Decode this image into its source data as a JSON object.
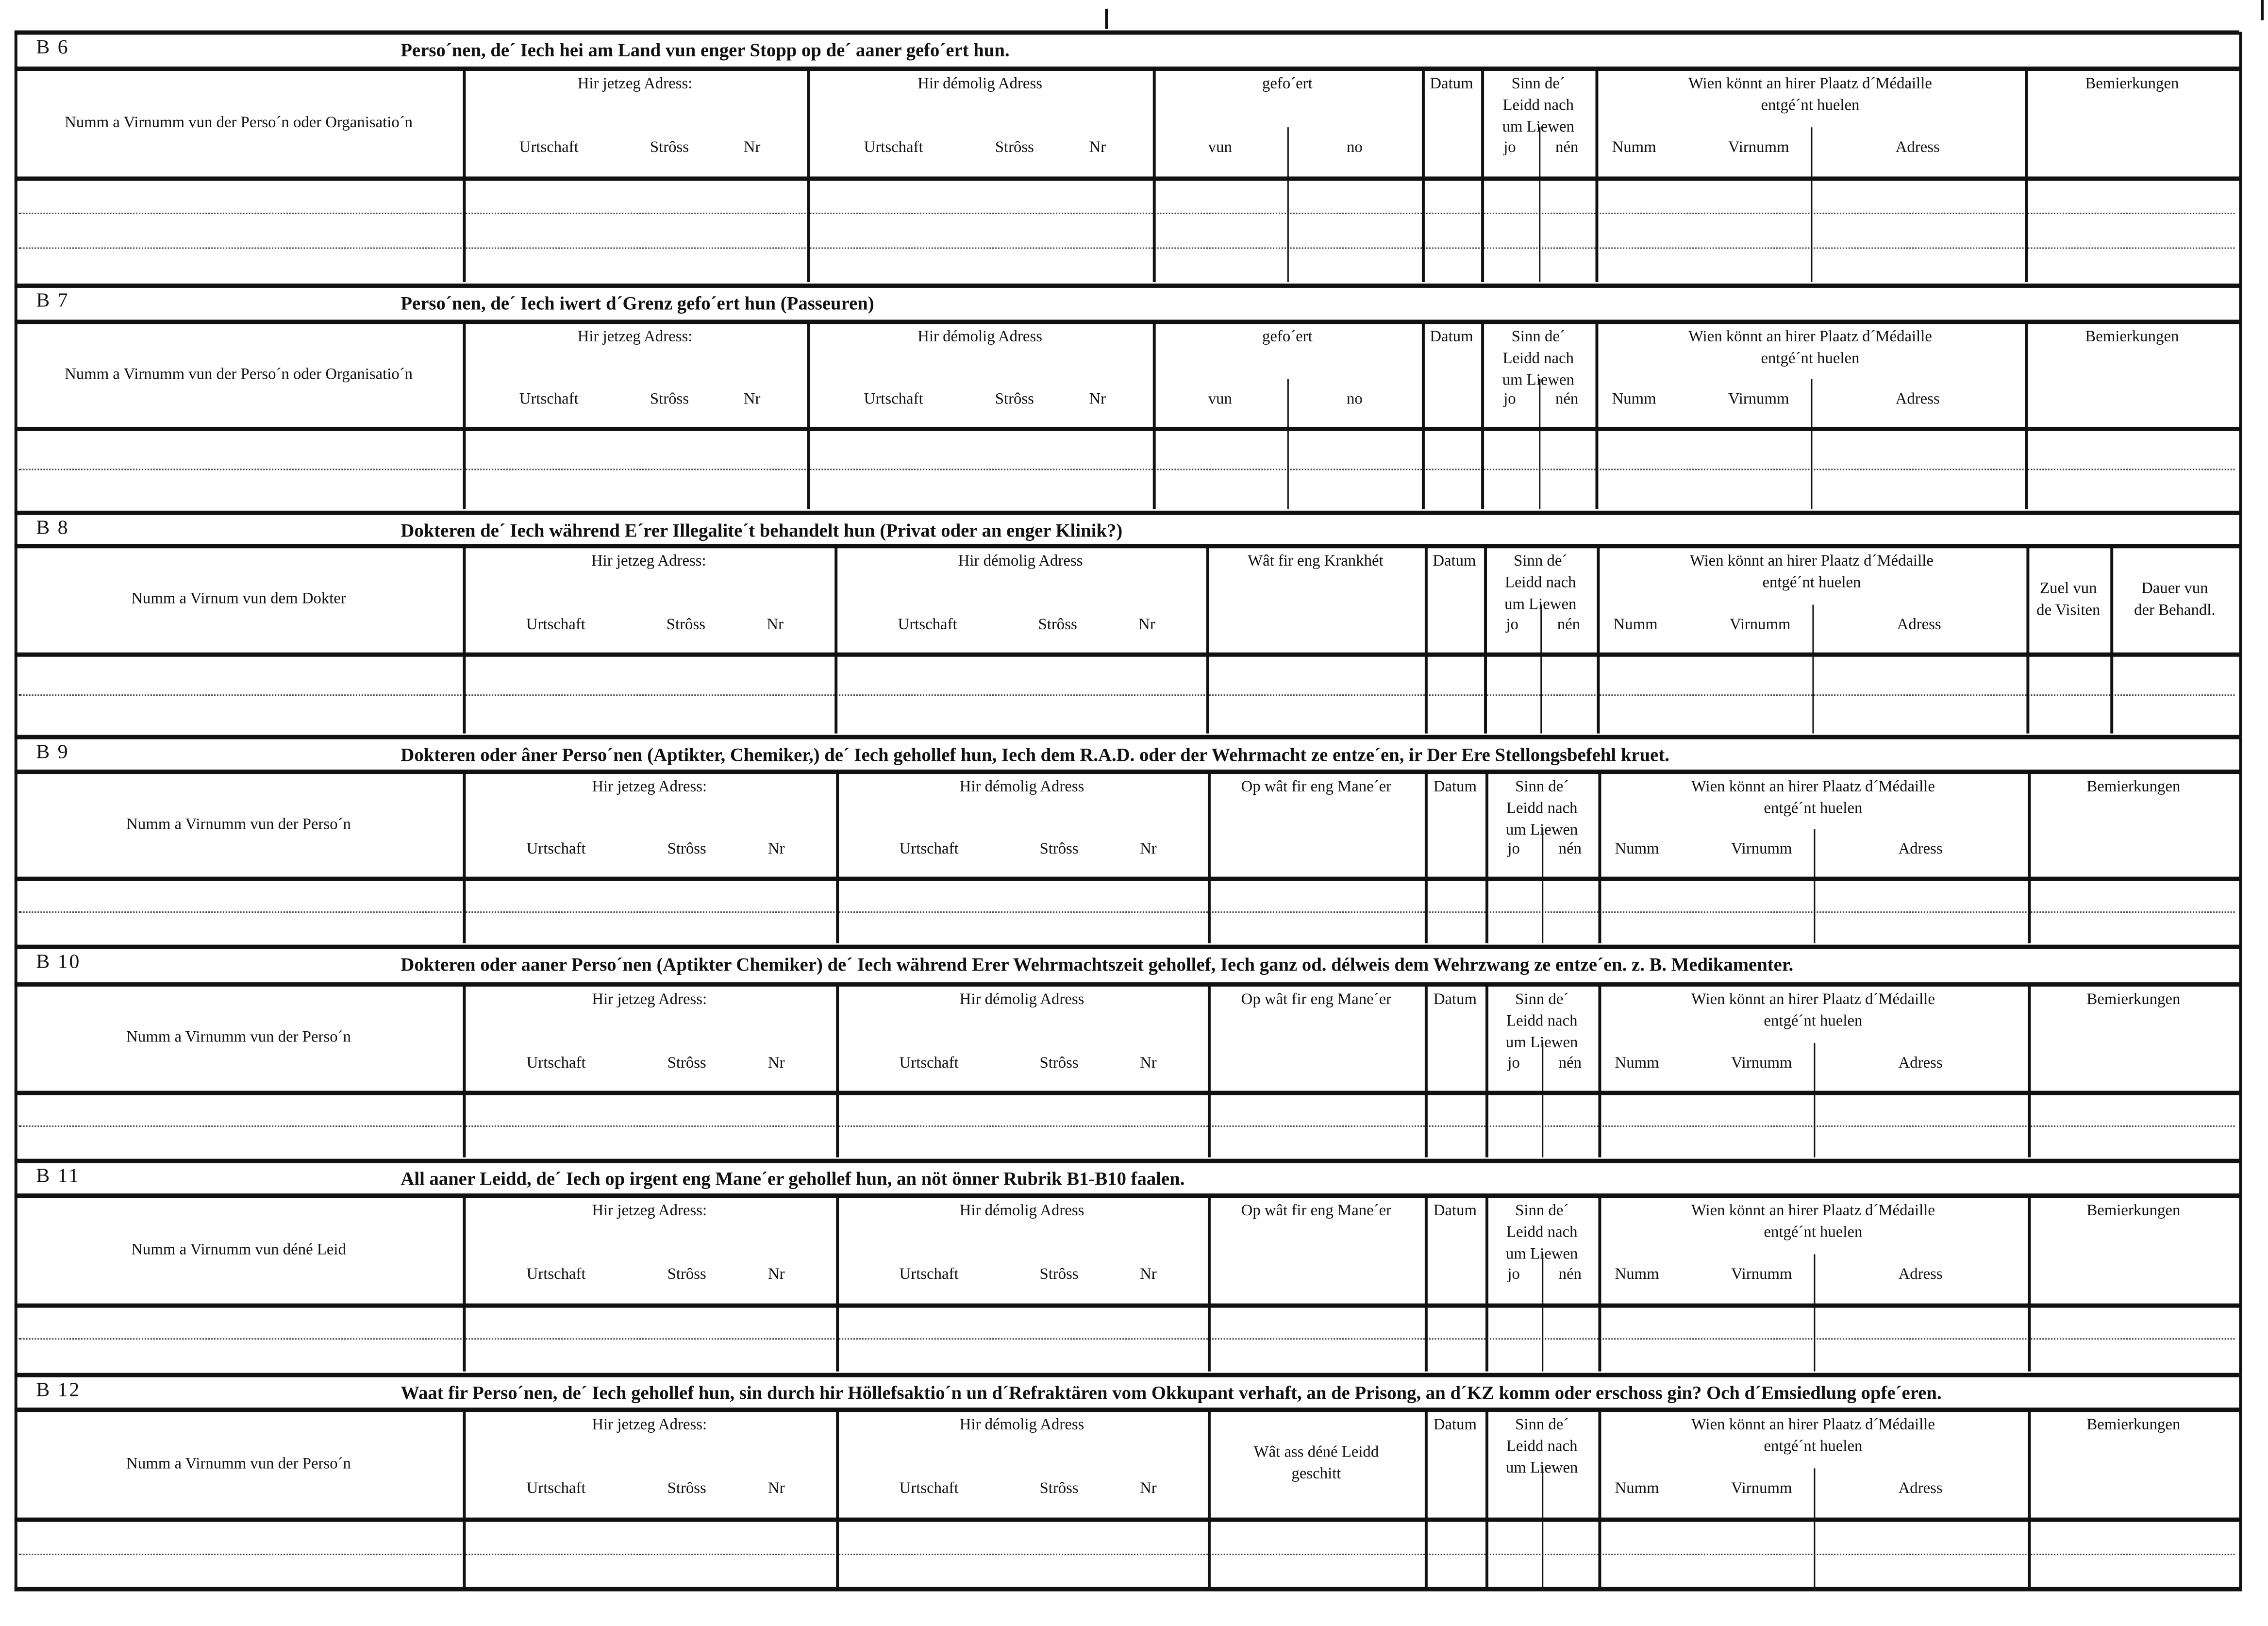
{
  "form": {
    "sections": [
      {
        "code": "B 6",
        "title": "Perso´nen, de´ Iech hei am Land vun enger Stopp  op de´ aaner gefo´ert hun.",
        "columns": [
          {
            "label": "Numm a Virnumm vun der Perso´n oder Organisatio´n"
          },
          {
            "label": "Hir jetzeg Adress:",
            "subs": [
              "Urtschaft",
              "Strôss",
              "Nr"
            ]
          },
          {
            "label": "Hir démolig Adress",
            "subs": [
              "Urtschaft",
              "Strôss",
              "Nr"
            ]
          },
          {
            "label": "gefo´ert",
            "subs": [
              "vun",
              "no"
            ]
          },
          {
            "label": "Datum"
          },
          {
            "label": "Sinn  de´\nLeidd  nach\num Liewen",
            "subs": [
              "jo",
              "nén"
            ]
          },
          {
            "label": "Wien  könnt  an  hirer  Plaatz  d´Médaille\nentgé´nt huelen",
            "subs": [
              "Numm",
              "Virnumm",
              "Adress"
            ]
          },
          {
            "label": "Bemierkungen"
          }
        ]
      },
      {
        "code": "B 7",
        "title": "Perso´nen, de´ Iech iwert d´Grenz gefo´ert hun  (Passeuren)",
        "columns": [
          {
            "label": "Numm a Virnumm vun der Perso´n oder Organisatio´n"
          },
          {
            "label": "Hir jetzeg Adress:",
            "subs": [
              "Urtschaft",
              "Strôss",
              "Nr"
            ]
          },
          {
            "label": "Hir démolig Adress",
            "subs": [
              "Urtschaft",
              "Strôss",
              "Nr"
            ]
          },
          {
            "label": "gefo´ert",
            "subs": [
              "vun",
              "no"
            ]
          },
          {
            "label": "Datum"
          },
          {
            "label": "Sinn  de´\nLeidd  nach\num Liewen",
            "subs": [
              "jo",
              "nén"
            ]
          },
          {
            "label": "Wien  könnt  an  hirer  Plaatz  d´Médaille\nentgé´nt huelen",
            "subs": [
              "Numm",
              "Virnumm",
              "Adress"
            ]
          },
          {
            "label": "Bemierkungen"
          }
        ]
      },
      {
        "code": "B 8",
        "title": "Dokteren de´ Iech während E´rer Illegalite´t behandelt hun (Privat  oder an enger Klinik?)",
        "columns": [
          {
            "label": "Numm a Virnum vun dem Dokter"
          },
          {
            "label": "Hir jetzeg Adress:",
            "subs": [
              "Urtschaft",
              "Strôss",
              "Nr"
            ]
          },
          {
            "label": "Hir démolig Adress",
            "subs": [
              "Urtschaft",
              "Strôss",
              "Nr"
            ]
          },
          {
            "label": "Wât  fir  eng  Krankhét"
          },
          {
            "label": "Datum"
          },
          {
            "label": "Sinn  de´\nLeidd  nach\num Liewen",
            "subs": [
              "jo",
              "nén"
            ]
          },
          {
            "label": "Wien  könnt  an  hirer  Plaatz  d´Médaille\nentgé´nt huelen",
            "subs": [
              "Numm",
              "Virnumm",
              "Adress"
            ]
          },
          {
            "label": "Zuel vun\nde Visiten"
          },
          {
            "label": "Dauer vun\nder Behandl."
          }
        ]
      },
      {
        "code": "B 9",
        "title": "Dokteren oder âner Perso´nen (Aptikter, Chemiker,) de´ Iech gehollef hun, Iech dem R.A.D. oder der Wehrmacht ze entze´en, ir Der Ere Stellongsbefehl kruet.",
        "columns": [
          {
            "label": "Numm a Virnumm vun der Perso´n"
          },
          {
            "label": "Hir jetzeg Adress:",
            "subs": [
              "Urtschaft",
              "Strôss",
              "Nr"
            ]
          },
          {
            "label": "Hir démolig Adress",
            "subs": [
              "Urtschaft",
              "Strôss",
              "Nr"
            ]
          },
          {
            "label": "Op  wât  fir  eng  Mane´er"
          },
          {
            "label": "Datum"
          },
          {
            "label": "Sinn  de´\nLeidd  nach\num Liewen",
            "subs": [
              "jo",
              "nén"
            ]
          },
          {
            "label": "Wien  könnt  an  hirer  Plaatz  d´Médaille\nentgé´nt huelen",
            "subs": [
              "Numm",
              "Virnumm",
              "Adress"
            ]
          },
          {
            "label": "Bemierkungen"
          }
        ]
      },
      {
        "code": "B 10",
        "title": "Dokteren oder aaner Perso´nen (Aptikter Chemiker) de´ Iech während Erer Wehrmachtszeit gehollef, Iech ganz od. délweis dem Wehrzwang ze entze´en. z. B. Medikamenter.",
        "columns": [
          {
            "label": "Numm a Virnumm vun der Perso´n"
          },
          {
            "label": "Hir jetzeg Adress:",
            "subs": [
              "Urtschaft",
              "Strôss",
              "Nr"
            ]
          },
          {
            "label": "Hir démolig Adress",
            "subs": [
              "Urtschaft",
              "Strôss",
              "Nr"
            ]
          },
          {
            "label": "Op  wât  fir  eng  Mane´er"
          },
          {
            "label": "Datum"
          },
          {
            "label": "Sinn  de´\nLeidd  nach\num Liewen",
            "subs": [
              "jo",
              "nén"
            ]
          },
          {
            "label": "Wien  könnt  an  hirer  Plaatz  d´Médaille\nentgé´nt huelen",
            "subs": [
              "Numm",
              "Virnumm",
              "Adress"
            ]
          },
          {
            "label": "Bemierkungen"
          }
        ]
      },
      {
        "code": "B 11",
        "title": "All aaner Leidd, de´ Iech op irgent eng Mane´er  gehollef hun, an nöt önner Rubrik B1-B10 faalen.",
        "columns": [
          {
            "label": "Numm a Virnumm vun déné Leid"
          },
          {
            "label": "Hir jetzeg Adress:",
            "subs": [
              "Urtschaft",
              "Strôss",
              "Nr"
            ]
          },
          {
            "label": "Hir démolig Adress",
            "subs": [
              "Urtschaft",
              "Strôss",
              "Nr"
            ]
          },
          {
            "label": "Op  wât  fir  eng  Mane´er"
          },
          {
            "label": "Datum"
          },
          {
            "label": "Sinn  de´\nLeidd  nach\num Liewen",
            "subs": [
              "jo",
              "nén"
            ]
          },
          {
            "label": "Wien  könnt  an  hirer  Plaatz  d´Médaille\nentgé´nt huelen",
            "subs": [
              "Numm",
              "Virnumm",
              "Adress"
            ]
          },
          {
            "label": "Bemierkungen"
          }
        ]
      },
      {
        "code": "B 12",
        "title": "Waat fir Perso´nen, de´ Iech gehollef hun, sin durch hir Höllefsaktio´n un d´Refraktären vom Okkupant verhaft, an de Prisong, an d´KZ komm oder  erschoss gin? Och d´Emsiedlung opfe´eren.",
        "columns": [
          {
            "label": "Numm a Virnumm vun der Perso´n"
          },
          {
            "label": "Hir jetzeg Adress:",
            "subs": [
              "Urtschaft",
              "Strôss",
              "Nr"
            ]
          },
          {
            "label": "Hir démolig Adress",
            "subs": [
              "Urtschaft",
              "Strôss",
              "Nr"
            ]
          },
          {
            "label": "Wât  ass  déné  Leidd\ngeschitt"
          },
          {
            "label": "Datum"
          },
          {
            "label": "Sinn  de´\nLeidd  nach\num Liewen"
          },
          {
            "label": "Wien  könnt  an  hirer  Plaatz  d´Médaille\nentgé´nt huelen",
            "subs": [
              "Numm",
              "Virnumm",
              "Adress"
            ]
          },
          {
            "label": "Bemierkungen"
          }
        ]
      }
    ]
  }
}
